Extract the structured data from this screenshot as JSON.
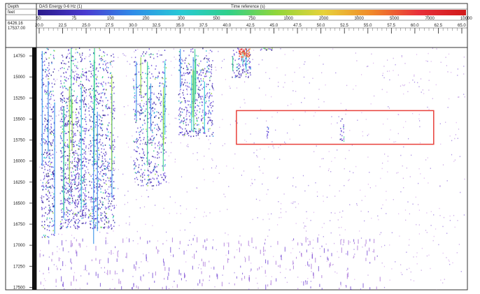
{
  "chart_data": {
    "type": "heatmap",
    "header": {
      "depth_label": "Depth",
      "unit_label": "feet",
      "depth_range_top": "6426.16",
      "depth_range_bottom": "17537.00",
      "color_scale_title": "DAS Energy 0-6 Hz (1)",
      "time_axis_title": "Time reference (s)"
    },
    "color_scale": {
      "colors": [
        "#2a1a8a",
        "#4a3ad0",
        "#2f8ce8",
        "#27c9d6",
        "#2fd08a",
        "#8fd63a",
        "#e7d23a",
        "#f08a2a",
        "#e8303a",
        "#d01a1a"
      ],
      "ticks": [
        "50",
        "75",
        "100",
        "200",
        "300",
        "500",
        "750",
        "1000",
        "2000",
        "3000",
        "5000",
        "7000",
        "10000"
      ]
    },
    "time_axis": {
      "ticks": [
        "20.0",
        "22.5",
        "25.0",
        "27.5",
        "30.0",
        "32.5",
        "35.0",
        "37.5",
        "40.0",
        "42.5",
        "45.0",
        "47.5",
        "50.0",
        "52.5",
        "55.0",
        "57.5",
        "60.0",
        "62.5",
        "65.0"
      ]
    },
    "depth_axis": {
      "ticks": [
        "14750",
        "15000",
        "15250",
        "15500",
        "15750",
        "16000",
        "16250",
        "16500",
        "16750",
        "17000",
        "17250",
        "17500"
      ],
      "range": [
        14650,
        17530
      ]
    },
    "annotation": {
      "label": "",
      "color": "#e8403a",
      "time_range": [
        41.0,
        62.0
      ],
      "depth_range": [
        15400,
        15800
      ]
    },
    "stages": [
      {
        "time_start": 20.2,
        "time_end": 21.6,
        "depth_top": 14650,
        "depth_bottom": 16900,
        "intensity": 0.75
      },
      {
        "time_start": 22.2,
        "time_end": 25.0,
        "depth_top": 14650,
        "depth_bottom": 16800,
        "intensity": 0.9
      },
      {
        "time_start": 25.2,
        "time_end": 28.0,
        "depth_top": 14650,
        "depth_bottom": 16800,
        "intensity": 0.7
      },
      {
        "time_start": 30.0,
        "time_end": 33.5,
        "depth_top": 14650,
        "depth_bottom": 16300,
        "intensity": 0.55
      },
      {
        "time_start": 34.8,
        "time_end": 38.5,
        "depth_top": 14650,
        "depth_bottom": 15700,
        "intensity": 0.7
      },
      {
        "time_start": 40.5,
        "time_end": 42.5,
        "depth_top": 14650,
        "depth_bottom": 15000,
        "intensity": 0.85
      },
      {
        "time_start": 43.5,
        "time_end": 44.8,
        "depth_top": 14650,
        "depth_bottom": 14680,
        "intensity": 0.6
      },
      {
        "time_start": 44.2,
        "time_end": 44.4,
        "depth_top": 15580,
        "depth_bottom": 15720,
        "intensity": 0.5
      },
      {
        "time_start": 52.0,
        "time_end": 52.4,
        "depth_top": 15450,
        "depth_bottom": 15760,
        "intensity": 0.6
      }
    ]
  },
  "colors": {
    "background": "#ffffff",
    "speckle": "#a46ad6",
    "speckle_dark": "#6a3ad0",
    "frame": "#333333"
  }
}
